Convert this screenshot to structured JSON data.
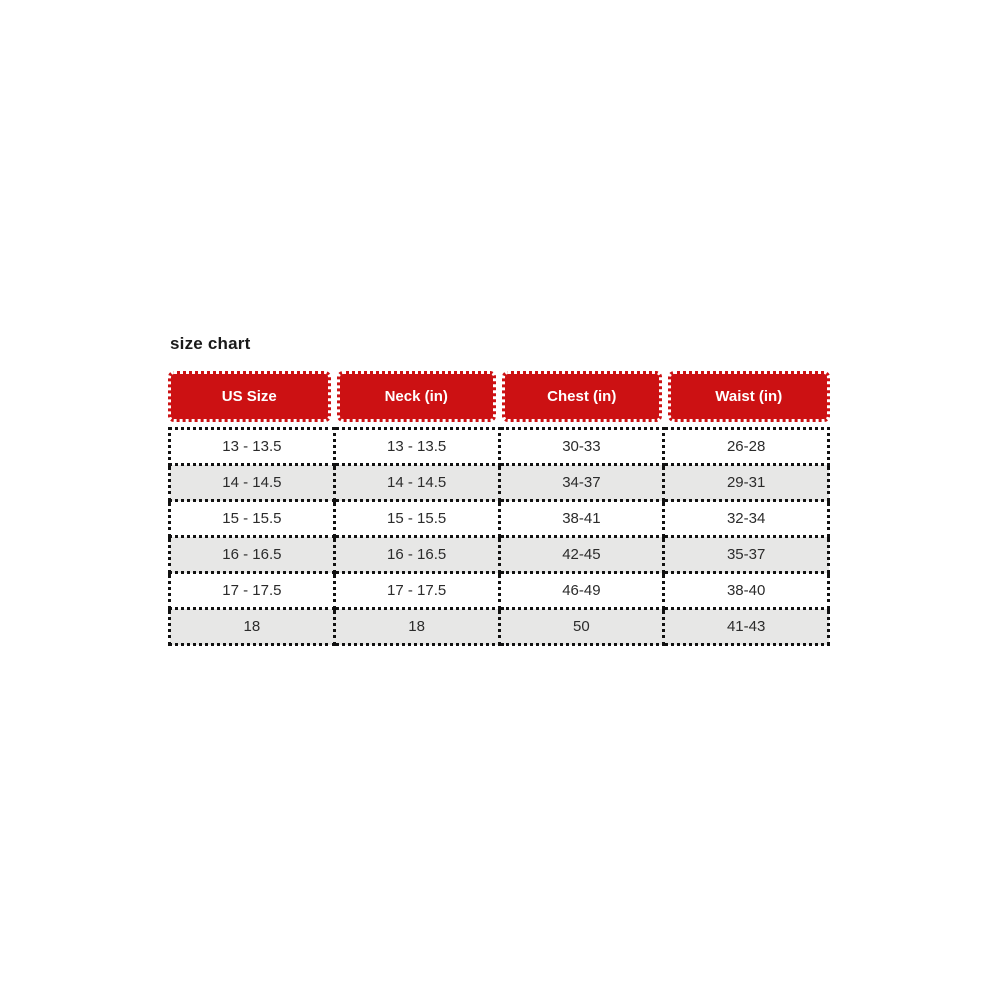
{
  "chart_data": {
    "type": "table",
    "title": "size chart",
    "columns": [
      "US Size",
      "Neck (in)",
      "Chest (in)",
      "Waist (in)"
    ],
    "rows": [
      [
        "13 - 13.5",
        "13 - 13.5",
        "30-33",
        "26-28"
      ],
      [
        "14 - 14.5",
        "14 - 14.5",
        "34-37",
        "29-31"
      ],
      [
        "15 - 15.5",
        "15 - 15.5",
        "38-41",
        "32-34"
      ],
      [
        "16 - 16.5",
        "16 - 16.5",
        "42-45",
        "35-37"
      ],
      [
        "17 - 17.5",
        "17 - 17.5",
        "46-49",
        "38-40"
      ],
      [
        "18",
        "18",
        "50",
        "41-43"
      ]
    ],
    "layout_hints": {
      "header_style": "red pill cells with white dotted scalloped border, rounded corners",
      "body_style": "black dotted cell borders, alternating row shading",
      "alternating_rows": true
    },
    "colors": {
      "header_bg": "#cc1113",
      "header_text": "#ffffff",
      "row_bg": "#ffffff",
      "row_alt_bg": "#e7e7e6",
      "border": "#111111",
      "title_text": "#1a1a1a"
    }
  }
}
